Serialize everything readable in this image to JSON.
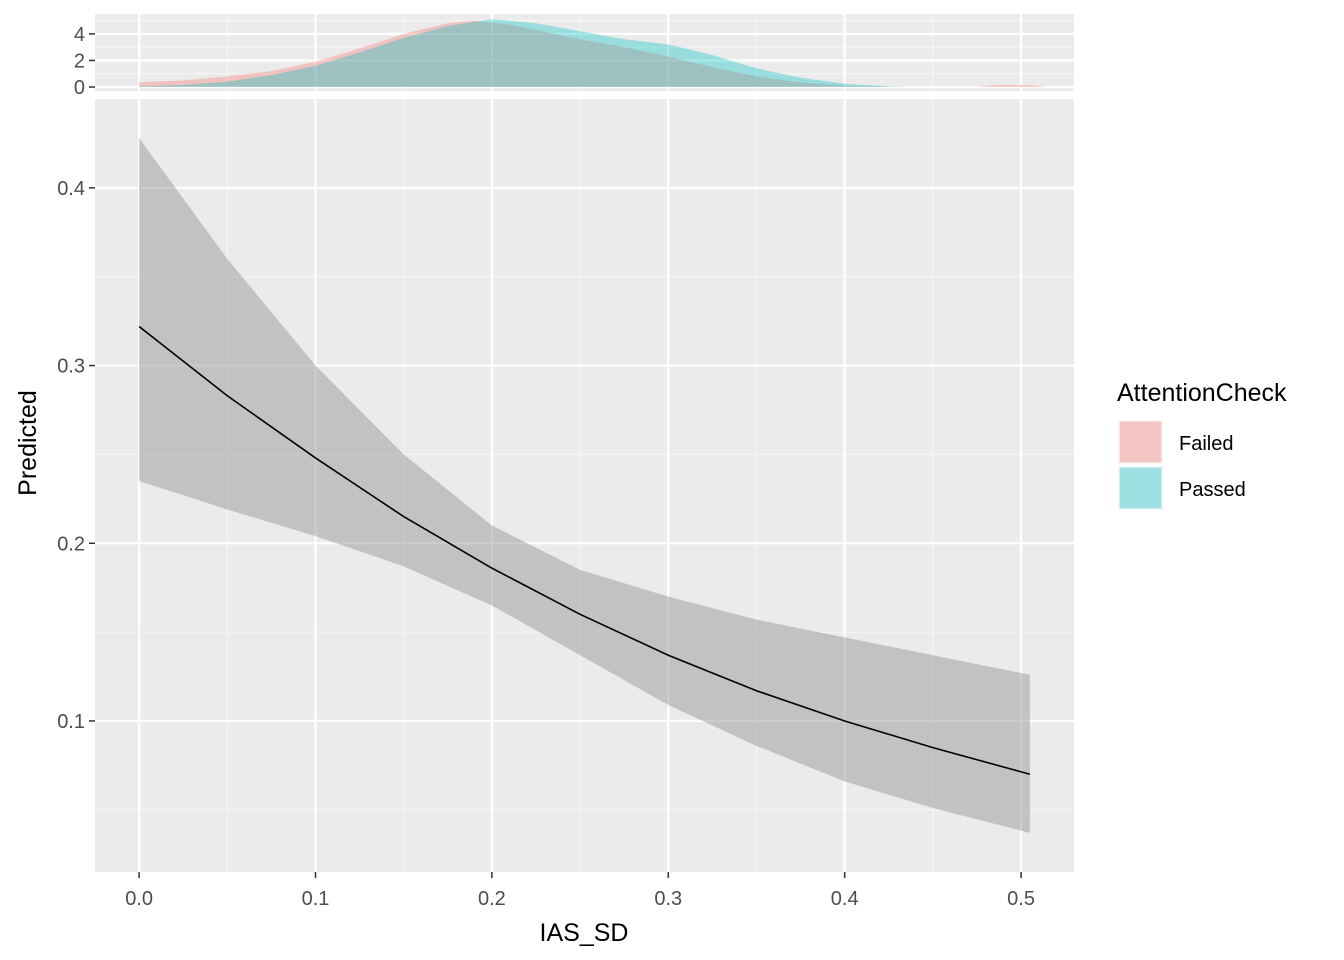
{
  "chart_data": [
    {
      "type": "area",
      "role": "marginal-density",
      "xlim": [
        -0.025,
        0.53
      ],
      "ylim": [
        -0.3,
        5.5
      ],
      "yticks": [
        0,
        2,
        4
      ],
      "y_tick_labels": [
        "0",
        "2",
        "4"
      ],
      "grid": true,
      "series": [
        {
          "name": "Failed",
          "color": "#F8766D",
          "opacity": 0.35,
          "x": [
            0.0,
            0.025,
            0.05,
            0.075,
            0.1,
            0.125,
            0.15,
            0.175,
            0.19,
            0.21,
            0.225,
            0.25,
            0.275,
            0.3,
            0.325,
            0.35,
            0.375,
            0.4,
            0.425,
            0.45,
            0.475,
            0.485,
            0.505,
            0.515
          ],
          "y": [
            0.35,
            0.5,
            0.8,
            1.2,
            1.9,
            2.9,
            4.0,
            4.8,
            5.0,
            4.7,
            4.3,
            3.6,
            3.0,
            2.3,
            1.5,
            0.8,
            0.35,
            0.1,
            0.03,
            0.01,
            0.01,
            0.15,
            0.15,
            0.0
          ]
        },
        {
          "name": "Passed",
          "color": "#00BFC4",
          "opacity": 0.35,
          "x": [
            0.0,
            0.025,
            0.05,
            0.075,
            0.1,
            0.125,
            0.15,
            0.175,
            0.2,
            0.225,
            0.25,
            0.275,
            0.3,
            0.325,
            0.35,
            0.375,
            0.4,
            0.425,
            0.435
          ],
          "y": [
            0.05,
            0.15,
            0.4,
            0.9,
            1.6,
            2.6,
            3.7,
            4.6,
            5.1,
            4.8,
            4.2,
            3.6,
            3.2,
            2.4,
            1.4,
            0.7,
            0.25,
            0.05,
            0.0
          ]
        }
      ]
    },
    {
      "type": "line",
      "role": "main",
      "xlabel": "IAS_SD",
      "ylabel": "Predicted",
      "xlim": [
        -0.025,
        0.53
      ],
      "ylim": [
        0.015,
        0.45
      ],
      "xticks": [
        0.0,
        0.1,
        0.2,
        0.3,
        0.4,
        0.5
      ],
      "x_tick_labels": [
        "0.0",
        "0.1",
        "0.2",
        "0.3",
        "0.4",
        "0.5"
      ],
      "yticks": [
        0.1,
        0.2,
        0.3,
        0.4
      ],
      "y_tick_labels": [
        "0.1",
        "0.2",
        "0.3",
        "0.4"
      ],
      "grid": true,
      "series": [
        {
          "name": "",
          "color": "#000000",
          "x": [
            0.0,
            0.05,
            0.1,
            0.15,
            0.2,
            0.25,
            0.3,
            0.35,
            0.4,
            0.45,
            0.505
          ],
          "y": [
            0.322,
            0.283,
            0.248,
            0.215,
            0.186,
            0.16,
            0.137,
            0.117,
            0.1,
            0.085,
            0.07
          ]
        }
      ],
      "ribbon": {
        "color": "#999999",
        "opacity": 0.5,
        "x": [
          0.0,
          0.05,
          0.1,
          0.15,
          0.2,
          0.25,
          0.3,
          0.35,
          0.4,
          0.45,
          0.505
        ],
        "lower": [
          0.235,
          0.219,
          0.204,
          0.187,
          0.165,
          0.137,
          0.109,
          0.086,
          0.066,
          0.051,
          0.037
        ],
        "upper": [
          0.428,
          0.36,
          0.3,
          0.25,
          0.21,
          0.185,
          0.17,
          0.157,
          0.147,
          0.137,
          0.126
        ]
      }
    }
  ],
  "legend": {
    "title": "AttentionCheck",
    "items": [
      {
        "label": "Failed",
        "color": "#F8766D"
      },
      {
        "label": "Passed",
        "color": "#00BFC4"
      }
    ],
    "placement": "right"
  }
}
